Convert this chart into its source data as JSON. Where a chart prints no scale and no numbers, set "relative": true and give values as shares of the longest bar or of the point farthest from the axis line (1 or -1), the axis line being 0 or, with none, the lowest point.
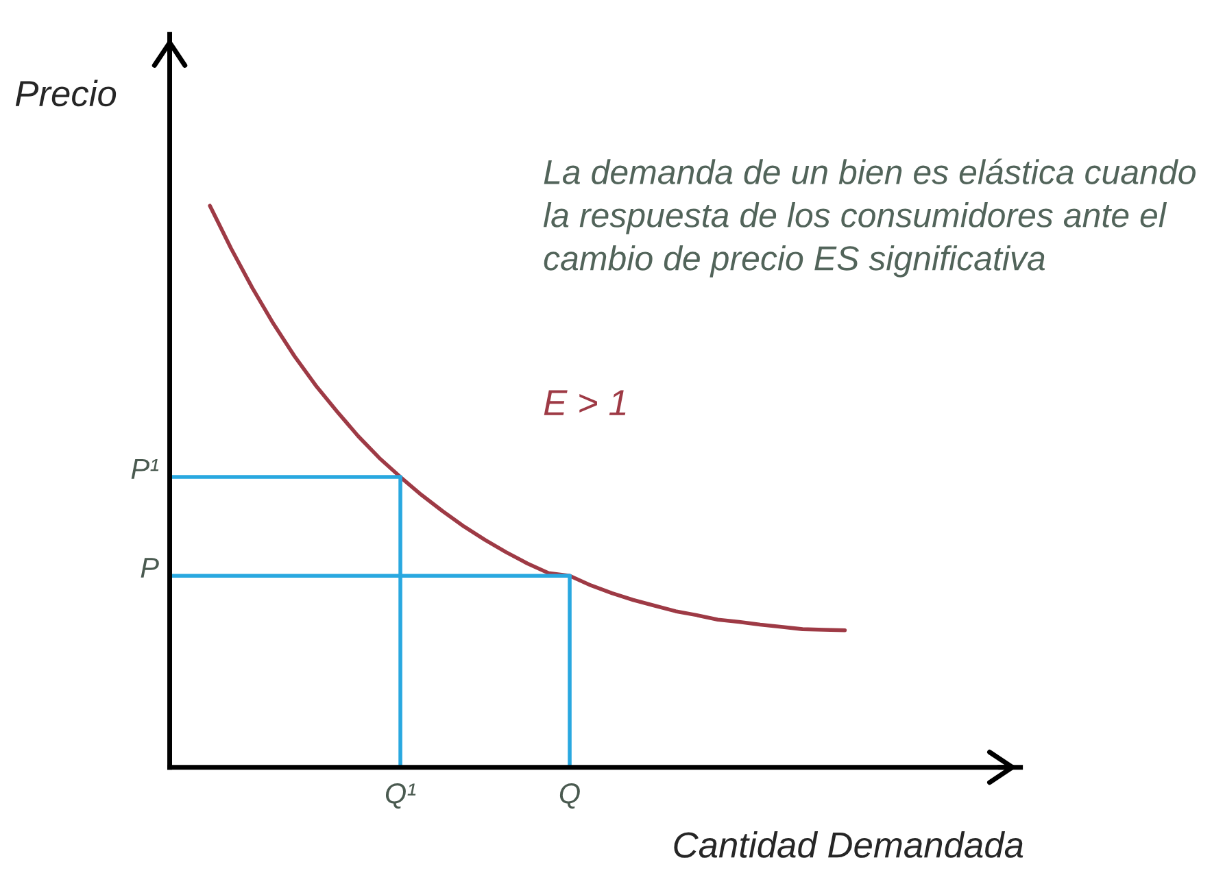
{
  "chart_data": {
    "type": "line",
    "relative": true,
    "xlabel": "Cantidad Demandada",
    "ylabel": "Precio",
    "categories": [
      null,
      null,
      null,
      null,
      null,
      null,
      null,
      null,
      null,
      "Q¹",
      null,
      null,
      null,
      null,
      null,
      null,
      null,
      "Q",
      null,
      null,
      null,
      null,
      null,
      null,
      null,
      null,
      null,
      null,
      null,
      null,
      null
    ],
    "series": [
      {
        "color": "#9e3a45",
        "values": [
          1.0,
          0.924,
          0.854,
          0.79,
          0.732,
          0.68,
          0.634,
          0.59,
          0.551,
          0.517,
          0.485,
          0.456,
          0.429,
          0.405,
          0.383,
          0.363,
          0.346,
          0.341,
          0.324,
          0.31,
          0.298,
          0.288,
          0.278,
          0.271,
          0.263,
          0.259,
          0.254,
          0.25,
          0.246,
          0.245,
          0.244
        ]
      }
    ],
    "ref_lines": [
      {
        "axis": "y",
        "value": 0.517,
        "label": "P¹",
        "color": "#29a8e0"
      },
      {
        "axis": "y",
        "value": 0.341,
        "label": "P",
        "color": "#29a8e0"
      },
      {
        "axis": "x",
        "value": "Q¹",
        "color": "#29a8e0"
      },
      {
        "axis": "x",
        "value": "Q",
        "color": "#29a8e0"
      }
    ],
    "annotations": [
      "La demanda de un bien es elástica cuando la respuesta de los consumidores ante el cambio de precio ES significativa",
      "E > 1"
    ],
    "grid": false
  }
}
